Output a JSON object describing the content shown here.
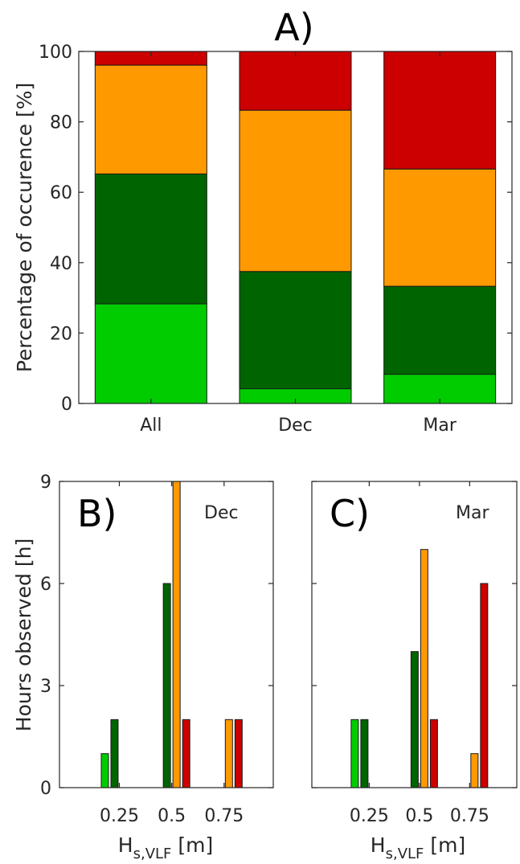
{
  "colors": {
    "light_green": "#00cc00",
    "dark_green": "#006400",
    "orange": "#ff9900",
    "red": "#cc0000"
  },
  "chart_data": [
    {
      "type": "bar",
      "stacked": true,
      "title": "A)",
      "ylabel": "Percentage of occurence [%]",
      "categories": [
        "All",
        "Dec",
        "Mar"
      ],
      "ylim": [
        0,
        100
      ],
      "yticks": [
        0,
        20,
        40,
        60,
        80,
        100
      ],
      "series": [
        {
          "color": "#00cc00",
          "values": [
            28.3,
            4.2,
            8.3
          ]
        },
        {
          "color": "#006400",
          "values": [
            36.9,
            33.3,
            25.0
          ]
        },
        {
          "color": "#ff9900",
          "values": [
            30.9,
            45.8,
            33.3
          ]
        },
        {
          "color": "#cc0000",
          "values": [
            3.9,
            16.7,
            33.4
          ]
        }
      ]
    },
    {
      "type": "bar",
      "panel_label": "B)",
      "annotation": "Dec",
      "ylabel": "Hours observed [h]",
      "xlabel_main": "H",
      "xlabel_sub": "s,VLF",
      "xlabel_unit": " [m]",
      "categories": [
        "0.25",
        "0.5",
        "0.75"
      ],
      "ylim": [
        0,
        9
      ],
      "yticks": [
        0,
        3,
        6,
        9
      ],
      "series": [
        {
          "color": "#00cc00",
          "values": [
            1,
            0,
            0
          ]
        },
        {
          "color": "#006400",
          "values": [
            2,
            6,
            0
          ]
        },
        {
          "color": "#ff9900",
          "values": [
            0,
            9,
            2
          ]
        },
        {
          "color": "#cc0000",
          "values": [
            0,
            2,
            2
          ]
        }
      ]
    },
    {
      "type": "bar",
      "panel_label": "C)",
      "annotation": "Mar",
      "xlabel_main": "H",
      "xlabel_sub": "s,VLF",
      "xlabel_unit": " [m]",
      "categories": [
        "0.25",
        "0.5",
        "0.75"
      ],
      "ylim": [
        0,
        9
      ],
      "yticks": [
        0,
        3,
        6,
        9
      ],
      "series": [
        {
          "color": "#00cc00",
          "values": [
            2,
            0,
            0
          ]
        },
        {
          "color": "#006400",
          "values": [
            2,
            4,
            0
          ]
        },
        {
          "color": "#ff9900",
          "values": [
            0,
            7,
            1
          ]
        },
        {
          "color": "#cc0000",
          "values": [
            0,
            2,
            6
          ]
        }
      ]
    }
  ]
}
